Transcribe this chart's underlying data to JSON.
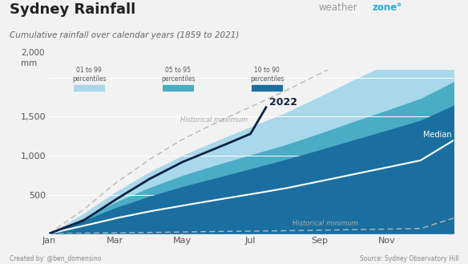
{
  "title": "Sydney Rainfall",
  "subtitle": "Cumulative rainfall over calendar years (1859 to 2021)",
  "background_color": "#f2f2f2",
  "band_color_outer": "#a8d8ea",
  "band_color_mid": "#4bacc6",
  "band_color_inner": "#1a6fa0",
  "median_color": "#ffffff",
  "line_2022_color": "#0d2240",
  "dashed_color": "#b8b8b8",
  "annotation_color": "#aaaaaa",
  "footer_left": "Created by: @ben_domensino",
  "footer_right": "Source: Sydney Observatory Hill",
  "legend_label1": "01 to 99\npercentiles",
  "legend_label2": "05 to 95\npercentiles",
  "legend_label3": "10 to 90\npercentiles",
  "weatherzone_gray": "#999999",
  "weatherzone_blue": "#29abe2",
  "months_days": [
    0,
    31,
    59,
    90,
    120,
    151,
    181,
    212,
    243,
    273,
    304,
    334,
    364
  ],
  "monthly_median": [
    0,
    100,
    195,
    285,
    360,
    435,
    505,
    580,
    670,
    760,
    850,
    940,
    1200
  ],
  "monthly_p10": [
    0,
    50,
    95,
    140,
    178,
    212,
    242,
    275,
    315,
    358,
    402,
    448,
    580
  ],
  "monthly_p90": [
    0,
    170,
    330,
    480,
    605,
    720,
    832,
    950,
    1075,
    1200,
    1328,
    1455,
    1650
  ],
  "monthly_p05": [
    0,
    28,
    55,
    82,
    105,
    125,
    142,
    162,
    188,
    215,
    244,
    274,
    360
  ],
  "monthly_p95": [
    0,
    200,
    400,
    590,
    748,
    885,
    1010,
    1138,
    1285,
    1435,
    1585,
    1735,
    1950
  ],
  "monthly_p01": [
    0,
    10,
    20,
    32,
    42,
    50,
    57,
    66,
    77,
    89,
    102,
    116,
    155
  ],
  "monthly_p99": [
    0,
    260,
    530,
    790,
    1005,
    1195,
    1370,
    1548,
    1758,
    1968,
    2178,
    2388,
    2600
  ],
  "monthly_hmax": [
    0,
    310,
    640,
    950,
    1210,
    1430,
    1625,
    1828,
    2050,
    2262,
    2468,
    2668,
    2860
  ],
  "monthly_hmin": [
    0,
    5,
    10,
    15,
    22,
    28,
    32,
    37,
    44,
    51,
    58,
    66,
    200
  ],
  "days_2022_months": [
    0,
    31,
    59,
    90,
    120,
    151,
    181,
    195
  ],
  "monthly_2022": [
    0,
    170,
    430,
    700,
    920,
    1100,
    1280,
    1620
  ],
  "xlim": [
    0,
    364
  ],
  "ylim": [
    0,
    2100
  ],
  "xtick_positions": [
    0,
    59,
    120,
    181,
    243,
    304
  ],
  "xtick_labels": [
    "Jan",
    "Mar",
    "May",
    "Jul",
    "Sep",
    "Nov"
  ],
  "ytick_positions": [
    500,
    1000,
    1500,
    2000
  ],
  "ytick_labels": [
    "500",
    "1,000",
    "1,500",
    "2,000"
  ]
}
